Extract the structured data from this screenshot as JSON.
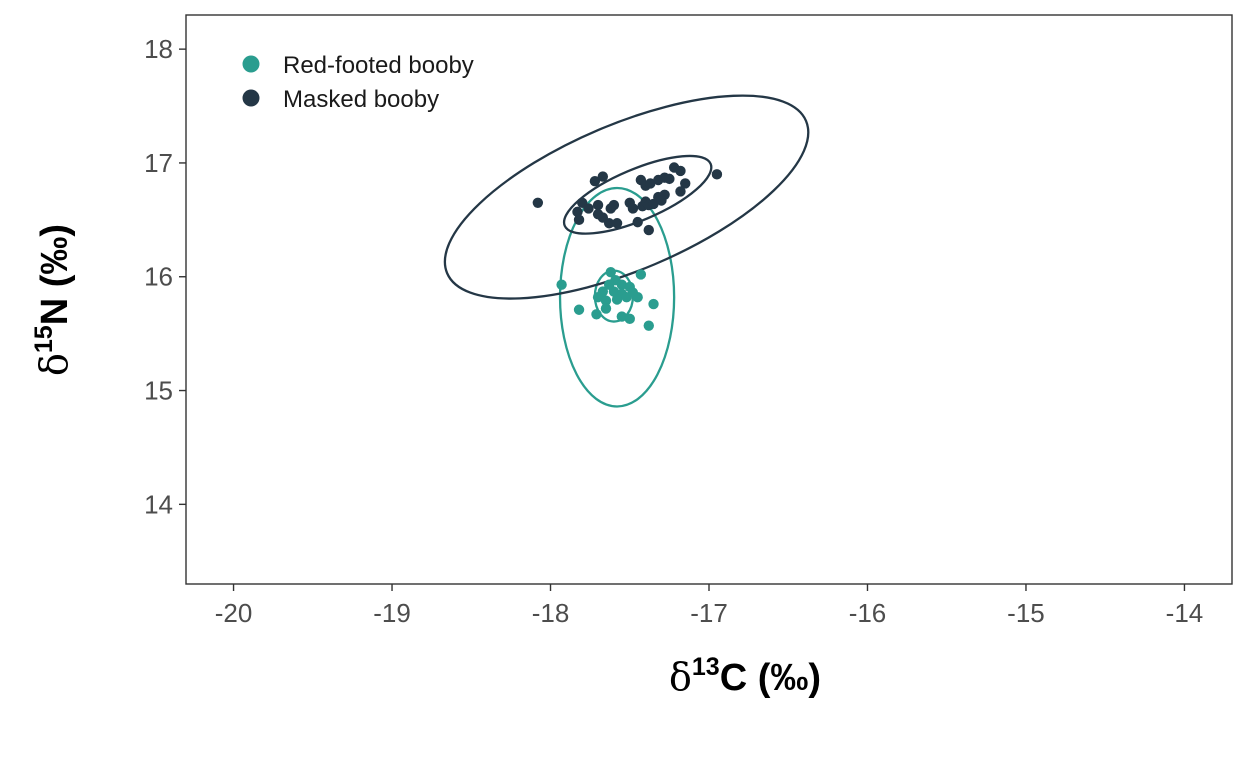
{
  "chart_data": {
    "type": "scatter",
    "xlabel": {
      "prefix": "δ",
      "sup": "13",
      "main": "C (‰)"
    },
    "ylabel": {
      "prefix": "δ",
      "sup": "15",
      "main": "N (‰)"
    },
    "xlim": [
      -20.3,
      -13.7
    ],
    "ylim": [
      13.3,
      18.3
    ],
    "xticks": [
      -20,
      -19,
      -18,
      -17,
      -16,
      -15,
      -14
    ],
    "yticks": [
      14,
      15,
      16,
      17,
      18
    ],
    "grid": false,
    "legend_position": "top-left",
    "series": [
      {
        "name": "Red-footed booby",
        "color": "#2a9d8f",
        "points": [
          [
            -17.93,
            15.93
          ],
          [
            -17.62,
            16.04
          ],
          [
            -17.59,
            15.97
          ],
          [
            -17.43,
            16.02
          ],
          [
            -17.63,
            15.93
          ],
          [
            -17.55,
            15.93
          ],
          [
            -17.5,
            15.91
          ],
          [
            -17.67,
            15.87
          ],
          [
            -17.6,
            15.87
          ],
          [
            -17.55,
            15.85
          ],
          [
            -17.48,
            15.86
          ],
          [
            -17.45,
            15.82
          ],
          [
            -17.7,
            15.82
          ],
          [
            -17.58,
            15.8
          ],
          [
            -17.52,
            15.82
          ],
          [
            -17.65,
            15.79
          ],
          [
            -17.35,
            15.76
          ],
          [
            -17.65,
            15.72
          ],
          [
            -17.82,
            15.71
          ],
          [
            -17.71,
            15.67
          ],
          [
            -17.55,
            15.65
          ],
          [
            -17.5,
            15.63
          ],
          [
            -17.38,
            15.57
          ]
        ],
        "ellipse_outer": {
          "cx": -17.58,
          "cy": 15.82,
          "rx": 0.36,
          "ry": 0.3,
          "angle": 0
        },
        "ellipse_inner": {
          "cx": -17.6,
          "cy": 15.83,
          "rx": 0.12,
          "ry": 0.07,
          "angle": 0
        }
      },
      {
        "name": "Masked booby",
        "color": "#243746",
        "points": [
          [
            -18.08,
            16.65
          ],
          [
            -17.8,
            16.65
          ],
          [
            -17.76,
            16.6
          ],
          [
            -17.83,
            16.57
          ],
          [
            -17.72,
            16.84
          ],
          [
            -17.67,
            16.88
          ],
          [
            -17.67,
            16.52
          ],
          [
            -17.62,
            16.6
          ],
          [
            -17.58,
            16.47
          ],
          [
            -17.63,
            16.47
          ],
          [
            -17.7,
            16.55
          ],
          [
            -17.82,
            16.5
          ],
          [
            -17.5,
            16.65
          ],
          [
            -17.48,
            16.6
          ],
          [
            -17.42,
            16.62
          ],
          [
            -17.4,
            16.66
          ],
          [
            -17.38,
            16.63
          ],
          [
            -17.35,
            16.64
          ],
          [
            -17.43,
            16.85
          ],
          [
            -17.4,
            16.8
          ],
          [
            -17.37,
            16.82
          ],
          [
            -17.32,
            16.85
          ],
          [
            -17.28,
            16.87
          ],
          [
            -17.25,
            16.86
          ],
          [
            -17.22,
            16.96
          ],
          [
            -17.18,
            16.93
          ],
          [
            -17.15,
            16.82
          ],
          [
            -17.28,
            16.72
          ],
          [
            -17.18,
            16.75
          ],
          [
            -16.95,
            16.9
          ],
          [
            -17.32,
            16.7
          ],
          [
            -17.3,
            16.67
          ],
          [
            -17.45,
            16.48
          ],
          [
            -17.38,
            16.41
          ],
          [
            -17.6,
            16.63
          ],
          [
            -17.7,
            16.63
          ]
        ],
        "ellipse_outer": {
          "cx": -17.52,
          "cy": 16.7,
          "rx": 1.23,
          "ry": 0.2,
          "angle": 23
        },
        "ellipse_inner": {
          "cx": -17.45,
          "cy": 16.72,
          "rx": 0.5,
          "ry": 0.07,
          "angle": 23
        }
      }
    ]
  }
}
